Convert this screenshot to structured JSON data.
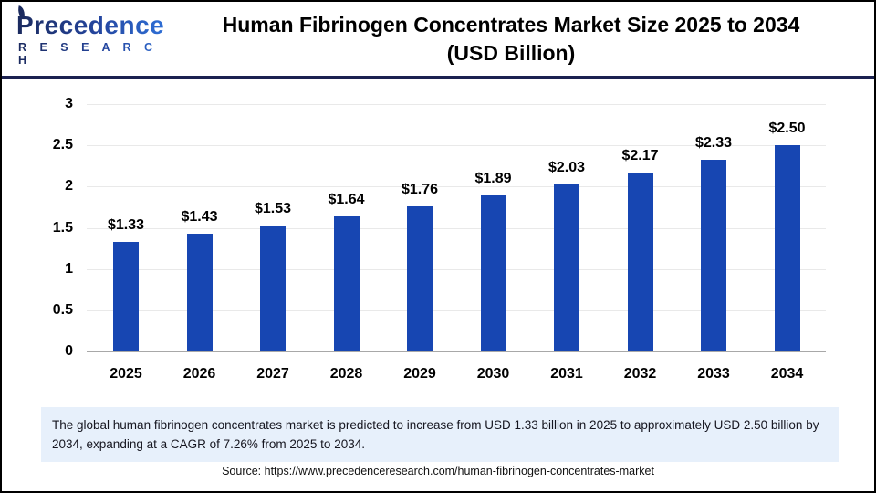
{
  "header": {
    "logo": {
      "line1": "Precedence",
      "line2": "R E S E A R C H"
    },
    "title_line1": "Human Fibrinogen Concentrates Market Size 2025 to 2034",
    "title_line2": "(USD Billion)"
  },
  "chart_data": {
    "type": "bar",
    "title": "Human Fibrinogen Concentrates Market Size 2025 to 2034 (USD Billion)",
    "categories": [
      "2025",
      "2026",
      "2027",
      "2028",
      "2029",
      "2030",
      "2031",
      "2032",
      "2033",
      "2034"
    ],
    "values": [
      1.33,
      1.43,
      1.53,
      1.64,
      1.76,
      1.89,
      2.03,
      2.17,
      2.33,
      2.5
    ],
    "bar_labels": [
      "$1.33",
      "$1.43",
      "$1.53",
      "$1.64",
      "$1.76",
      "$1.89",
      "$2.03",
      "$2.17",
      "$2.33",
      "$2.50"
    ],
    "xlabel": "",
    "ylabel": "",
    "ylim": [
      0,
      3
    ],
    "ytick_values": [
      0,
      0.5,
      1,
      1.5,
      2,
      2.5,
      3
    ],
    "ytick_labels": [
      "0",
      "0.5",
      "1",
      "1.5",
      "2",
      "2.5",
      "3"
    ],
    "grid": true,
    "legend": false,
    "bar_color": "#1746B2"
  },
  "summary": {
    "text": "The global human fibrinogen concentrates market is predicted to increase from USD 1.33 billion in 2025 to approximately USD 2.50 billion by 2034, expanding at a CAGR of 7.26% from 2025 to 2034."
  },
  "source": {
    "text": "Source: https://www.precedenceresearch.com/human-fibrinogen-concentrates-market"
  },
  "colors": {
    "bar": "#1746B2",
    "header_rule": "#1B2150",
    "summary_bg": "#E7F0FB",
    "logo_navy": "#1B2A5E",
    "logo_blue": "#2E6FD6",
    "grid": "#E9E9E9",
    "baseline": "#A8A8A8"
  }
}
